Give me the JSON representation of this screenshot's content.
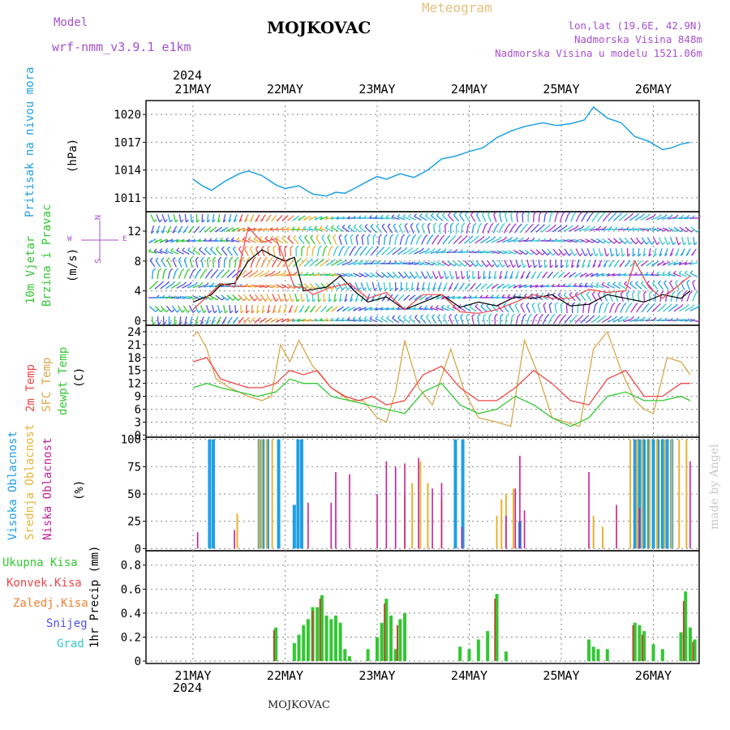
{
  "header": {
    "model_label": "Model",
    "model_name": "wrf-nmm_v3.9.1 e1km",
    "title": "MOJKOVAC",
    "meteogram": "Meteogram",
    "coords": "lon,lat (19.6E, 42.9N)",
    "elevation": "Nadmorska Visina 848m",
    "elevation_model": "Nadmorska Visina u modelu 1521.06m",
    "year_top": "2024",
    "year_bottom": "2024",
    "footer_name": "MOJKOVAC",
    "credit": "made by Angel"
  },
  "colors": {
    "pressure": "#1ea0e6",
    "temp2m": "#f04646",
    "sfc": "#d8a84a",
    "dewpt": "#32c832",
    "high_cloud": "#1e9ee6",
    "mid_cloud": "#e6b432",
    "low_cloud": "#c81e96",
    "total_precip": "#32c832",
    "conv_precip": "#f04646",
    "frozen_precip": "#f08232",
    "snow": "#5050e6",
    "grad": "#32c8c8",
    "purple": "#a650d0"
  },
  "days": [
    "21MAY",
    "22MAY",
    "23MAY",
    "24MAY",
    "25MAY",
    "26MAY"
  ],
  "panel_labels": {
    "pressure": {
      "name": "Pritisak na nivou mora",
      "unit": "(hPa)"
    },
    "wind": {
      "name1": "10m Vjetar",
      "name2": "Brzina i Pravac",
      "unit": "(m/s)",
      "compass_n": "N",
      "compass_e": "E",
      "compass_w": "W",
      "compass_s": "S"
    },
    "temp": {
      "t2m": "2m Temp",
      "sfc": "SFC Temp",
      "dew": "dewpt Temp",
      "unit": "(C)"
    },
    "cloud": {
      "high": "Visoka Oblacnost",
      "mid": "Srednja Oblacnost",
      "low": "Niska Oblacnost",
      "unit": "(%)"
    },
    "precip": {
      "unit": "1hr Precip (mm)",
      "legend": [
        "Ukupna Kisa",
        "Konvek.Kisa",
        "Zaledj.Kisa",
        "Snijeg",
        "Grad"
      ]
    }
  },
  "chart_data": [
    {
      "type": "line",
      "panel": "pressure",
      "ylabel": "(hPa)",
      "ylim": [
        1009.5,
        1021.5
      ],
      "yticks": [
        1011,
        1014,
        1017,
        1020
      ],
      "series": [
        {
          "name": "Pritisak na nivou mora",
          "x": [
            0,
            0.1,
            0.2,
            0.35,
            0.5,
            0.6,
            0.75,
            0.9,
            1.0,
            1.15,
            1.3,
            1.45,
            1.55,
            1.65,
            1.75,
            1.9,
            2.0,
            2.1,
            2.25,
            2.4,
            2.55,
            2.7,
            2.85,
            3.0,
            3.15,
            3.3,
            3.45,
            3.6,
            3.7,
            3.8,
            3.95,
            4.1,
            4.25,
            4.35,
            4.5,
            4.65,
            4.8,
            4.95,
            5.1,
            5.2,
            5.3,
            5.4
          ],
          "values": [
            1013.0,
            1012.3,
            1011.8,
            1012.8,
            1013.6,
            1013.9,
            1013.4,
            1012.4,
            1012.0,
            1012.3,
            1011.4,
            1011.2,
            1011.6,
            1011.5,
            1012.0,
            1012.8,
            1013.3,
            1013.0,
            1013.6,
            1013.2,
            1014.0,
            1015.2,
            1015.5,
            1016.0,
            1016.4,
            1017.5,
            1018.2,
            1018.7,
            1018.9,
            1019.1,
            1018.8,
            1019.0,
            1019.4,
            1020.8,
            1019.6,
            1019.1,
            1017.6,
            1017.1,
            1016.2,
            1016.4,
            1016.8,
            1017.0
          ]
        }
      ],
      "grid": true
    },
    {
      "type": "line",
      "panel": "wind",
      "ylabel": "(m/s)",
      "ylim": [
        -0.6,
        14.6
      ],
      "yticks": [
        0,
        4,
        8,
        12
      ],
      "series": [
        {
          "name": "speed",
          "x": [
            0,
            0.2,
            0.3,
            0.45,
            0.6,
            0.75,
            0.9,
            1.0,
            1.1,
            1.2,
            1.3,
            1.45,
            1.6,
            1.75,
            1.9,
            2.1,
            2.3,
            2.5,
            2.7,
            2.9,
            3.1,
            3.3,
            3.5,
            3.7,
            3.9,
            4.1,
            4.3,
            4.5,
            4.7,
            4.9,
            5.1,
            5.3,
            5.4
          ],
          "values": [
            2.5,
            3.5,
            4.8,
            5.0,
            8.0,
            9.5,
            8.5,
            8.0,
            8.5,
            4.0,
            4.2,
            4.5,
            6.0,
            4.0,
            2.5,
            3.2,
            1.5,
            2.5,
            3.5,
            1.8,
            2.5,
            2.0,
            3.2,
            3.0,
            3.5,
            2.0,
            2.2,
            3.5,
            3.0,
            2.5,
            3.5,
            3.0,
            4.0
          ]
        },
        {
          "name": "gust",
          "x": [
            0,
            0.2,
            0.3,
            0.45,
            0.6,
            0.75,
            0.9,
            1.0,
            1.1,
            1.2,
            1.3,
            1.5,
            1.7,
            1.9,
            2.1,
            2.3,
            2.5,
            2.7,
            2.9,
            3.1,
            3.3,
            3.5,
            3.7,
            3.9,
            4.1,
            4.3,
            4.5,
            4.7,
            4.8,
            4.95,
            5.1,
            5.3,
            5.4
          ],
          "values": [
            1.5,
            3.8,
            5.0,
            4.5,
            12.5,
            10.5,
            11.0,
            8.0,
            4.5,
            4.5,
            3.5,
            4.5,
            5.0,
            3.0,
            3.8,
            1.5,
            3.5,
            3.5,
            1.2,
            1.0,
            1.5,
            2.5,
            3.5,
            3.0,
            3.0,
            4.2,
            3.8,
            4.0,
            8.0,
            4.5,
            3.0,
            5.0,
            6.0
          ]
        }
      ]
    },
    {
      "type": "line",
      "panel": "temp",
      "ylabel": "(C)",
      "ylim": [
        -0.5,
        25.5
      ],
      "yticks": [
        0,
        3,
        6,
        9,
        12,
        15,
        18,
        21,
        24
      ],
      "series": [
        {
          "name": "2m Temp",
          "x": [
            0,
            0.15,
            0.3,
            0.45,
            0.6,
            0.75,
            0.9,
            1.05,
            1.2,
            1.35,
            1.5,
            1.65,
            1.8,
            1.95,
            2.1,
            2.3,
            2.5,
            2.7,
            2.9,
            3.1,
            3.3,
            3.5,
            3.7,
            3.9,
            4.1,
            4.3,
            4.5,
            4.7,
            4.9,
            5.1,
            5.3,
            5.4
          ],
          "values": [
            17,
            18,
            13,
            12,
            11,
            11,
            12,
            15,
            14,
            15,
            11,
            9,
            8,
            9,
            7,
            8,
            14,
            16,
            11,
            8,
            8,
            11,
            15,
            12,
            8,
            7,
            13,
            15,
            9,
            9,
            12,
            12
          ]
        },
        {
          "name": "SFC Temp",
          "x": [
            0,
            0.05,
            0.15,
            0.25,
            0.4,
            0.6,
            0.75,
            0.85,
            0.95,
            1.05,
            1.15,
            1.3,
            1.5,
            1.7,
            1.85,
            2.0,
            2.1,
            2.2,
            2.3,
            2.45,
            2.6,
            2.8,
            2.95,
            3.1,
            3.3,
            3.45,
            3.6,
            3.75,
            3.9,
            4.05,
            4.2,
            4.35,
            4.5,
            4.65,
            4.8,
            4.9,
            5.0,
            5.15,
            5.3,
            5.4
          ],
          "values": [
            23,
            24,
            20,
            13,
            11,
            9,
            8,
            9,
            21,
            17,
            22,
            16,
            11,
            8,
            8,
            4,
            3,
            10,
            22,
            11,
            7,
            20,
            10,
            4,
            3,
            2,
            22,
            14,
            4,
            3,
            2,
            20,
            24,
            15,
            8,
            6,
            5,
            18,
            17,
            14
          ]
        },
        {
          "name": "dewpt Temp",
          "x": [
            0,
            0.15,
            0.3,
            0.5,
            0.7,
            0.9,
            1.05,
            1.2,
            1.35,
            1.5,
            1.7,
            1.9,
            2.1,
            2.3,
            2.5,
            2.7,
            2.9,
            3.1,
            3.3,
            3.5,
            3.7,
            3.9,
            4.1,
            4.3,
            4.5,
            4.7,
            4.9,
            5.1,
            5.3,
            5.4
          ],
          "values": [
            11,
            12,
            11,
            10,
            9,
            10,
            13,
            12,
            12,
            9,
            8,
            7,
            6,
            5,
            10,
            12,
            7,
            5,
            6,
            9,
            7,
            4,
            2,
            4,
            9,
            10,
            8,
            8,
            9,
            8
          ]
        }
      ]
    },
    {
      "type": "bar",
      "panel": "cloud",
      "ylabel": "(%)",
      "ylim": [
        -2,
        102
      ],
      "yticks": [
        0,
        25,
        50,
        75,
        100
      ],
      "series": [
        {
          "name": "Visoka Oblacnost",
          "bars": [
            [
              0.18,
              100
            ],
            [
              0.22,
              100
            ],
            [
              0.72,
              100
            ],
            [
              0.76,
              100
            ],
            [
              0.81,
              100
            ],
            [
              0.93,
              100
            ],
            [
              1.1,
              40
            ],
            [
              1.14,
              100
            ],
            [
              1.18,
              100
            ],
            [
              2.85,
              100
            ],
            [
              2.93,
              100
            ],
            [
              3.55,
              25
            ],
            [
              4.8,
              100
            ],
            [
              4.85,
              100
            ],
            [
              4.9,
              100
            ],
            [
              4.95,
              100
            ],
            [
              5.0,
              100
            ],
            [
              5.05,
              100
            ],
            [
              5.1,
              100
            ],
            [
              5.15,
              100
            ],
            [
              5.2,
              100
            ]
          ]
        },
        {
          "name": "Srednja Oblacnost",
          "bars": [
            [
              0.48,
              32
            ],
            [
              0.72,
              100
            ],
            [
              0.75,
              100
            ],
            [
              0.8,
              100
            ],
            [
              0.86,
              100
            ],
            [
              2.3,
              50
            ],
            [
              2.38,
              60
            ],
            [
              2.47,
              80
            ],
            [
              2.55,
              60
            ],
            [
              2.7,
              45
            ],
            [
              3.3,
              30
            ],
            [
              3.35,
              45
            ],
            [
              3.4,
              50
            ],
            [
              3.48,
              55
            ],
            [
              4.35,
              30
            ],
            [
              4.45,
              20
            ],
            [
              4.75,
              100
            ],
            [
              4.82,
              100
            ],
            [
              4.88,
              100
            ],
            [
              4.96,
              100
            ],
            [
              5.04,
              100
            ],
            [
              5.12,
              100
            ],
            [
              5.2,
              100
            ],
            [
              5.28,
              100
            ],
            [
              5.36,
              100
            ]
          ]
        },
        {
          "name": "Niska Oblacnost",
          "bars": [
            [
              0.05,
              15
            ],
            [
              0.45,
              17
            ],
            [
              1.25,
              42
            ],
            [
              1.5,
              42
            ],
            [
              1.55,
              70
            ],
            [
              1.7,
              68
            ],
            [
              2.0,
              50
            ],
            [
              2.1,
              80
            ],
            [
              2.2,
              75
            ],
            [
              2.3,
              78
            ],
            [
              2.45,
              83
            ],
            [
              2.6,
              55
            ],
            [
              2.7,
              60
            ],
            [
              2.92,
              20
            ],
            [
              3.4,
              30
            ],
            [
              3.5,
              55
            ],
            [
              3.55,
              85
            ],
            [
              3.6,
              35
            ],
            [
              4.3,
              70
            ],
            [
              4.6,
              40
            ],
            [
              4.85,
              37
            ],
            [
              5.4,
              80
            ]
          ]
        }
      ]
    },
    {
      "type": "bar",
      "panel": "precip",
      "ylabel": "1hr Precip (mm)",
      "ylim": [
        -0.02,
        0.92
      ],
      "yticks": [
        0,
        0.2,
        0.4,
        0.6,
        0.8
      ],
      "series": [
        {
          "name": "Ukupna Kisa",
          "bars": [
            [
              0.9,
              0.28
            ],
            [
              1.1,
              0.15
            ],
            [
              1.15,
              0.22
            ],
            [
              1.2,
              0.3
            ],
            [
              1.25,
              0.35
            ],
            [
              1.3,
              0.45
            ],
            [
              1.35,
              0.45
            ],
            [
              1.4,
              0.55
            ],
            [
              1.45,
              0.38
            ],
            [
              1.5,
              0.35
            ],
            [
              1.55,
              0.38
            ],
            [
              1.6,
              0.32
            ],
            [
              1.65,
              0.1
            ],
            [
              1.7,
              0.04
            ],
            [
              1.9,
              0.1
            ],
            [
              2.0,
              0.2
            ],
            [
              2.05,
              0.32
            ],
            [
              2.1,
              0.52
            ],
            [
              2.15,
              0.38
            ],
            [
              2.2,
              0.1
            ],
            [
              2.25,
              0.35
            ],
            [
              2.3,
              0.4
            ],
            [
              2.9,
              0.12
            ],
            [
              3.0,
              0.1
            ],
            [
              3.1,
              0.18
            ],
            [
              3.2,
              0.25
            ],
            [
              3.3,
              0.56
            ],
            [
              3.4,
              0.08
            ],
            [
              4.3,
              0.18
            ],
            [
              4.35,
              0.12
            ],
            [
              4.4,
              0.1
            ],
            [
              4.5,
              0.1
            ],
            [
              4.8,
              0.32
            ],
            [
              4.85,
              0.3
            ],
            [
              4.9,
              0.25
            ],
            [
              5.0,
              0.14
            ],
            [
              5.1,
              0.1
            ],
            [
              5.3,
              0.24
            ],
            [
              5.35,
              0.58
            ],
            [
              5.4,
              0.28
            ],
            [
              5.45,
              0.18
            ]
          ]
        },
        {
          "name": "Konvek.Kisa",
          "bars": [
            [
              0.88,
              0.26
            ],
            [
              1.3,
              0.42
            ],
            [
              1.38,
              0.52
            ],
            [
              2.08,
              0.48
            ],
            [
              2.22,
              0.3
            ],
            [
              3.28,
              0.52
            ],
            [
              4.78,
              0.3
            ],
            [
              4.88,
              0.22
            ],
            [
              5.33,
              0.5
            ],
            [
              5.43,
              0.16
            ]
          ]
        }
      ]
    }
  ],
  "legend": {
    "colors": [
      "#32c832",
      "#f04646",
      "#f08232",
      "#5050e6",
      "#32c8c8"
    ]
  }
}
